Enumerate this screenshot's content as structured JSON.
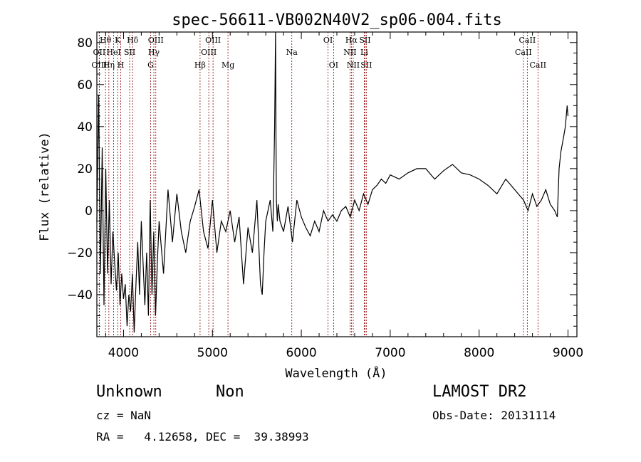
{
  "chart_data": {
    "type": "line",
    "title": "spec-56611-VB002N40V2_sp06-004.fits",
    "xlabel": "Wavelength (Å)",
    "ylabel": "Flux (relative)",
    "xlim": [
      3700,
      9100
    ],
    "ylim": [
      -60,
      85
    ],
    "x_ticks": [
      4000,
      5000,
      6000,
      7000,
      8000,
      9000
    ],
    "x_tick_labels": [
      "4000",
      "5000",
      "6000",
      "7000",
      "8000",
      "9000"
    ],
    "y_ticks": [
      -40,
      -20,
      0,
      20,
      40,
      60,
      80
    ],
    "y_tick_labels": [
      "−40",
      "−20",
      "0",
      "20",
      "40",
      "60",
      "80"
    ],
    "spectrum": {
      "x": [
        3700,
        3720,
        3740,
        3760,
        3780,
        3800,
        3820,
        3840,
        3860,
        3880,
        3900,
        3920,
        3940,
        3960,
        3980,
        4000,
        4020,
        4040,
        4060,
        4080,
        4100,
        4120,
        4140,
        4160,
        4180,
        4200,
        4220,
        4240,
        4260,
        4280,
        4300,
        4320,
        4340,
        4360,
        4380,
        4400,
        4450,
        4500,
        4550,
        4600,
        4650,
        4700,
        4750,
        4800,
        4850,
        4900,
        4950,
        5000,
        5050,
        5100,
        5150,
        5200,
        5250,
        5300,
        5350,
        5400,
        5450,
        5500,
        5520,
        5540,
        5560,
        5580,
        5600,
        5650,
        5680,
        5700,
        5710,
        5715,
        5720,
        5730,
        5740,
        5760,
        5800,
        5850,
        5900,
        5950,
        6000,
        6050,
        6100,
        6150,
        6200,
        6250,
        6300,
        6350,
        6400,
        6450,
        6500,
        6550,
        6600,
        6650,
        6700,
        6750,
        6800,
        6850,
        6900,
        6950,
        7000,
        7100,
        7200,
        7300,
        7400,
        7500,
        7600,
        7700,
        7800,
        7900,
        8000,
        8100,
        8200,
        8300,
        8400,
        8500,
        8550,
        8600,
        8650,
        8700,
        8750,
        8800,
        8850,
        8880,
        8900,
        8920,
        8950,
        8970,
        8990,
        9000
      ],
      "y": [
        -5,
        55,
        -30,
        30,
        -45,
        20,
        -30,
        5,
        -35,
        -10,
        -25,
        -38,
        -20,
        -45,
        -30,
        -42,
        -35,
        -55,
        -40,
        -48,
        -30,
        -58,
        -35,
        -15,
        -40,
        -5,
        -25,
        -45,
        -20,
        -50,
        5,
        -40,
        -10,
        -50,
        -25,
        -5,
        -30,
        10,
        -15,
        8,
        -10,
        -20,
        -5,
        2,
        10,
        -10,
        -18,
        5,
        -20,
        -5,
        -10,
        0,
        -15,
        -3,
        -35,
        -8,
        -20,
        5,
        -15,
        -35,
        -40,
        -20,
        -5,
        5,
        -10,
        40,
        85,
        35,
        5,
        -5,
        3,
        -5,
        -10,
        2,
        -15,
        5,
        -3,
        -8,
        -12,
        -5,
        -10,
        0,
        -5,
        -2,
        -5,
        0,
        2,
        -3,
        5,
        0,
        8,
        3,
        10,
        12,
        15,
        13,
        17,
        15,
        18,
        20,
        20,
        15,
        19,
        22,
        18,
        17,
        15,
        12,
        8,
        15,
        10,
        5,
        0,
        8,
        2,
        5,
        10,
        3,
        0,
        -3,
        20,
        28,
        35,
        40,
        50,
        45
      ]
    },
    "lines": [
      {
        "name": "Hθ",
        "x": 3797,
        "row": 0
      },
      {
        "name": "OII",
        "x": 3727,
        "row": 1
      },
      {
        "name": "OIII",
        "x": 3727,
        "row": 2
      },
      {
        "name": "K",
        "x": 3934,
        "row": 0
      },
      {
        "name": "HeI",
        "x": 3889,
        "row": 1
      },
      {
        "name": "Hη",
        "x": 3835,
        "row": 2
      },
      {
        "name": "Hδ",
        "x": 4102,
        "row": 0
      },
      {
        "name": "SII",
        "x": 4069,
        "row": 1
      },
      {
        "name": "H",
        "x": 3969,
        "row": 2
      },
      {
        "name": "OIII",
        "x": 4363,
        "row": 0
      },
      {
        "name": "Hγ",
        "x": 4341,
        "row": 1
      },
      {
        "name": "G",
        "x": 4305,
        "row": 2
      },
      {
        "name": "OIII",
        "x": 5007,
        "row": 0
      },
      {
        "name": "OIII",
        "x": 4959,
        "row": 1
      },
      {
        "name": "Hβ",
        "x": 4861,
        "row": 2
      },
      {
        "name": "Mg",
        "x": 5175,
        "row": 2
      },
      {
        "name": "Na",
        "x": 5893,
        "row": 1
      },
      {
        "name": "OI",
        "x": 6300,
        "row": 0
      },
      {
        "name": "OI",
        "x": 6363,
        "row": 2
      },
      {
        "name": "Hα",
        "x": 6563,
        "row": 0
      },
      {
        "name": "SII",
        "x": 6716,
        "row": 0
      },
      {
        "name": "NII",
        "x": 6548,
        "row": 1
      },
      {
        "name": "Li",
        "x": 6708,
        "row": 1
      },
      {
        "name": "NII",
        "x": 6584,
        "row": 2
      },
      {
        "name": "SII",
        "x": 6731,
        "row": 2
      },
      {
        "name": "CaII",
        "x": 8542,
        "row": 0
      },
      {
        "name": "CaII",
        "x": 8498,
        "row": 1
      },
      {
        "name": "CaII",
        "x": 8662,
        "row": 2
      }
    ]
  },
  "info": {
    "object_class": "Unknown",
    "subclass": "Non",
    "survey": "LAMOST DR2",
    "cz": "cz = NaN",
    "obs_date": "Obs-Date: 20131114",
    "coords": "RA =   4.12658, DEC =  39.38993"
  }
}
